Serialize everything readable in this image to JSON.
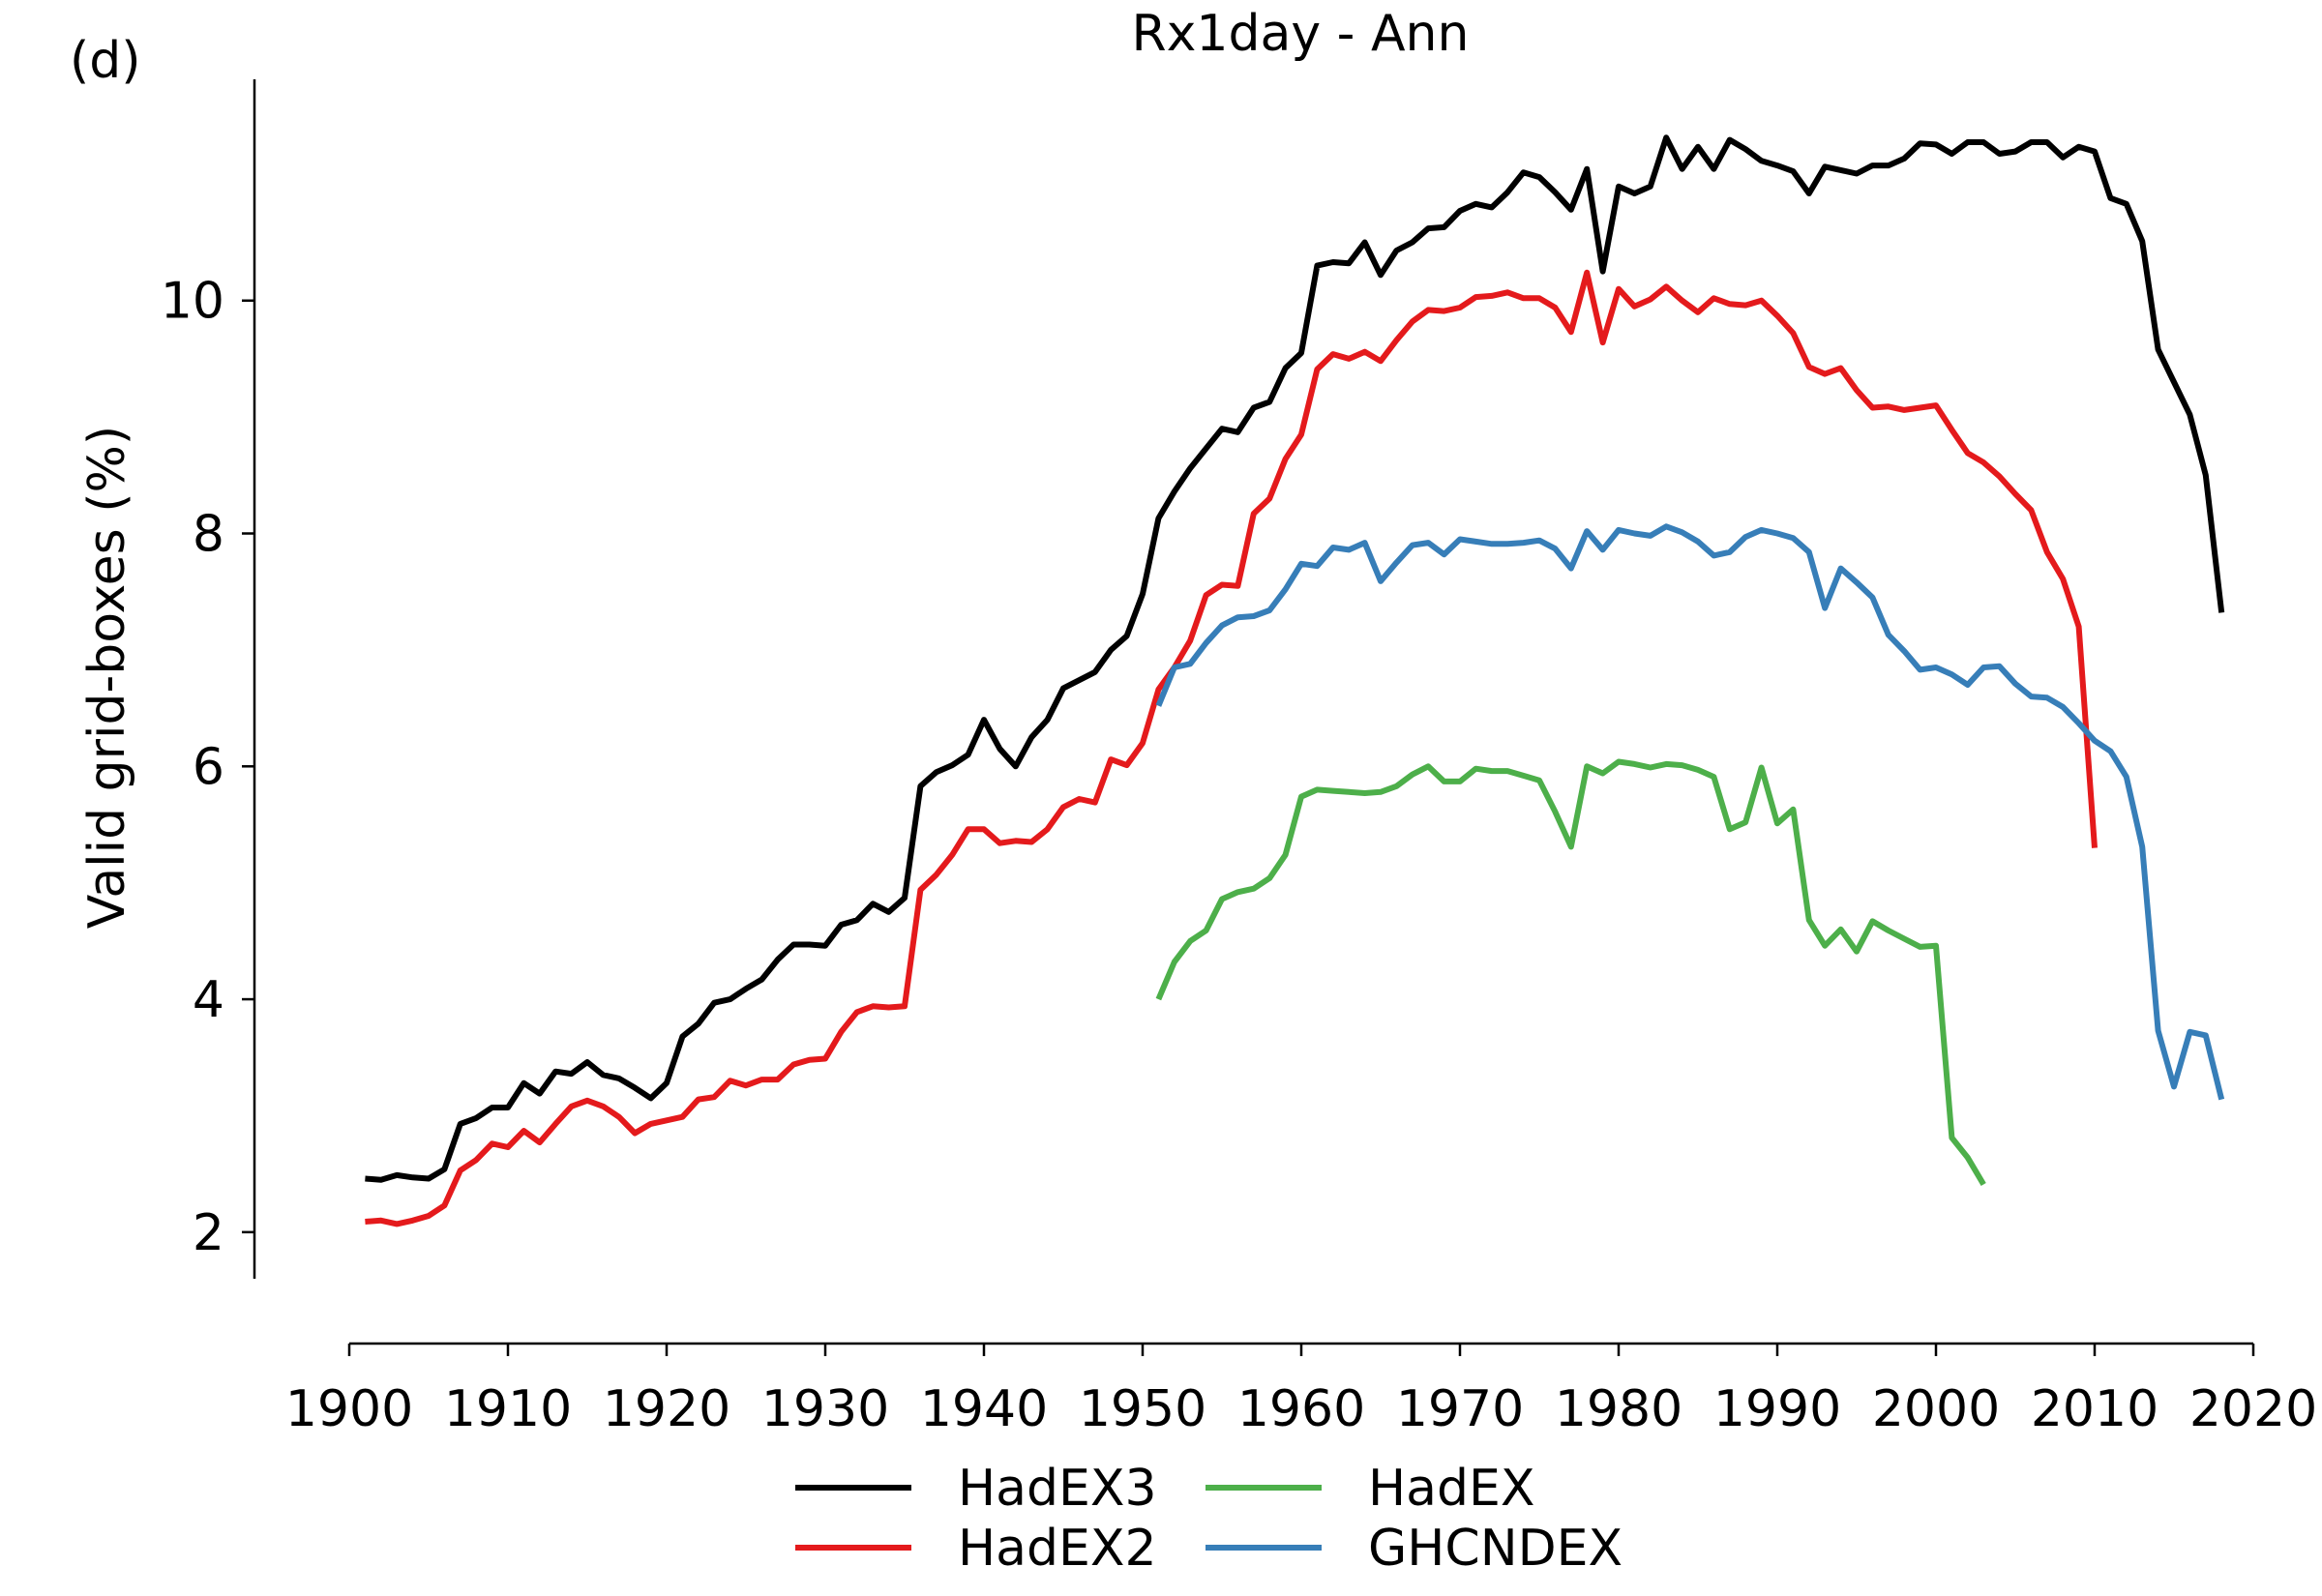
{
  "panel_label": "(d)",
  "chart_data": {
    "type": "line",
    "title": "Rx1day - Ann",
    "xlabel": "",
    "ylabel": "Valid grid-boxes (%)",
    "xlim": [
      1900,
      2020
    ],
    "ylim": [
      1.6,
      11.9
    ],
    "xticks": [
      1900,
      1910,
      1920,
      1930,
      1940,
      1950,
      1960,
      1970,
      1980,
      1990,
      2000,
      2010,
      2020
    ],
    "yticks": [
      2,
      4,
      6,
      8,
      10
    ],
    "grid": false,
    "legend_position": "bottom-center",
    "series": [
      {
        "name": "HadEX3",
        "color": "#000000",
        "x": [
          1901,
          1902,
          1903,
          1904,
          1905,
          1906,
          1907,
          1908,
          1909,
          1910,
          1911,
          1912,
          1913,
          1914,
          1915,
          1916,
          1917,
          1918,
          1919,
          1920,
          1921,
          1922,
          1923,
          1924,
          1925,
          1926,
          1927,
          1928,
          1929,
          1930,
          1931,
          1932,
          1933,
          1934,
          1935,
          1936,
          1937,
          1938,
          1939,
          1940,
          1941,
          1942,
          1943,
          1944,
          1945,
          1946,
          1947,
          1948,
          1949,
          1950,
          1951,
          1952,
          1953,
          1954,
          1955,
          1956,
          1957,
          1958,
          1959,
          1960,
          1961,
          1962,
          1963,
          1964,
          1965,
          1966,
          1967,
          1968,
          1969,
          1970,
          1971,
          1972,
          1973,
          1974,
          1975,
          1976,
          1977,
          1978,
          1979,
          1980,
          1981,
          1982,
          1983,
          1984,
          1985,
          1986,
          1987,
          1988,
          1989,
          1990,
          1991,
          1992,
          1993,
          1994,
          1995,
          1996,
          1997,
          1998,
          1999,
          2000,
          2001,
          2002,
          2003,
          2004,
          2005,
          2006,
          2007,
          2008,
          2009,
          2010,
          2011,
          2012,
          2013,
          2014,
          2015,
          2016,
          2017,
          2018
        ],
        "values": [
          2.46,
          2.45,
          2.49,
          2.47,
          2.46,
          2.54,
          2.93,
          2.98,
          3.07,
          3.07,
          3.28,
          3.19,
          3.38,
          3.36,
          3.46,
          3.35,
          3.32,
          3.24,
          3.15,
          3.28,
          3.68,
          3.79,
          3.97,
          4.0,
          4.09,
          4.17,
          4.34,
          4.47,
          4.47,
          4.46,
          4.64,
          4.68,
          4.82,
          4.75,
          4.87,
          5.83,
          5.95,
          6.01,
          6.1,
          6.4,
          6.15,
          6.0,
          6.25,
          6.4,
          6.67,
          6.74,
          6.81,
          7.0,
          7.12,
          7.48,
          8.13,
          8.36,
          8.56,
          8.73,
          8.9,
          8.87,
          9.08,
          9.13,
          9.42,
          9.55,
          10.3,
          10.33,
          10.32,
          10.5,
          10.22,
          10.43,
          10.5,
          10.62,
          10.63,
          10.77,
          10.83,
          10.8,
          10.93,
          11.1,
          11.06,
          10.93,
          10.78,
          11.13,
          10.25,
          10.98,
          10.92,
          10.98,
          11.4,
          11.13,
          11.32,
          11.13,
          11.38,
          11.3,
          11.2,
          11.16,
          11.11,
          10.92,
          11.15,
          11.12,
          11.09,
          11.16,
          11.16,
          11.22,
          11.35,
          11.34,
          11.26,
          11.36,
          11.36,
          11.26,
          11.28,
          11.36,
          11.36,
          11.23,
          11.32,
          11.28,
          10.88,
          10.83,
          10.51,
          9.58,
          9.3,
          9.02,
          8.5,
          7.32
        ]
      },
      {
        "name": "HadEX2",
        "color": "#e41a1c",
        "x": [
          1901,
          1902,
          1903,
          1904,
          1905,
          1906,
          1907,
          1908,
          1909,
          1910,
          1911,
          1912,
          1913,
          1914,
          1915,
          1916,
          1917,
          1918,
          1919,
          1920,
          1921,
          1922,
          1923,
          1924,
          1925,
          1926,
          1927,
          1928,
          1929,
          1930,
          1931,
          1932,
          1933,
          1934,
          1935,
          1936,
          1937,
          1938,
          1939,
          1940,
          1941,
          1942,
          1943,
          1944,
          1945,
          1946,
          1947,
          1948,
          1949,
          1950,
          1951,
          1952,
          1953,
          1954,
          1955,
          1956,
          1957,
          1958,
          1959,
          1960,
          1961,
          1962,
          1963,
          1964,
          1965,
          1966,
          1967,
          1968,
          1969,
          1970,
          1971,
          1972,
          1973,
          1974,
          1975,
          1976,
          1977,
          1978,
          1979,
          1980,
          1981,
          1982,
          1983,
          1984,
          1985,
          1986,
          1987,
          1988,
          1989,
          1990,
          1991,
          1992,
          1993,
          1994,
          1995,
          1996,
          1997,
          1998,
          1999,
          2000,
          2001,
          2002,
          2003,
          2004,
          2005,
          2006,
          2007,
          2008,
          2009,
          2010
        ],
        "values": [
          2.09,
          2.1,
          2.07,
          2.1,
          2.14,
          2.23,
          2.53,
          2.62,
          2.76,
          2.73,
          2.87,
          2.77,
          2.93,
          3.08,
          3.13,
          3.08,
          2.99,
          2.85,
          2.93,
          2.96,
          2.99,
          3.14,
          3.16,
          3.3,
          3.26,
          3.31,
          3.31,
          3.44,
          3.48,
          3.49,
          3.72,
          3.89,
          3.94,
          3.93,
          3.94,
          4.94,
          5.07,
          5.24,
          5.46,
          5.46,
          5.34,
          5.36,
          5.35,
          5.46,
          5.65,
          5.72,
          5.69,
          6.06,
          6.01,
          6.2,
          6.66,
          6.85,
          7.08,
          7.47,
          7.56,
          7.55,
          8.17,
          8.3,
          8.64,
          8.85,
          9.41,
          9.54,
          9.5,
          9.56,
          9.48,
          9.66,
          9.82,
          9.92,
          9.91,
          9.94,
          10.03,
          10.04,
          10.07,
          10.02,
          10.02,
          9.94,
          9.73,
          10.24,
          9.64,
          10.1,
          9.95,
          10.01,
          10.12,
          10.0,
          9.9,
          10.02,
          9.97,
          9.96,
          10.0,
          9.87,
          9.72,
          9.43,
          9.37,
          9.42,
          9.23,
          9.08,
          9.09,
          9.06,
          9.08,
          9.1,
          8.89,
          8.69,
          8.61,
          8.49,
          8.34,
          8.2,
          7.84,
          7.61,
          7.2,
          5.3
        ]
      },
      {
        "name": "HadEX",
        "color": "#4daf4a",
        "x": [
          1951,
          1952,
          1953,
          1954,
          1955,
          1956,
          1957,
          1958,
          1959,
          1960,
          1961,
          1962,
          1963,
          1964,
          1965,
          1966,
          1967,
          1968,
          1969,
          1970,
          1971,
          1972,
          1973,
          1974,
          1975,
          1976,
          1977,
          1978,
          1979,
          1980,
          1981,
          1982,
          1983,
          1984,
          1985,
          1986,
          1987,
          1988,
          1989,
          1990,
          1991,
          1992,
          1993,
          1994,
          1995,
          1996,
          1997,
          1998,
          1999,
          2000,
          2001,
          2002,
          2003
        ],
        "values": [
          4.0,
          4.32,
          4.5,
          4.59,
          4.86,
          4.92,
          4.95,
          5.04,
          5.24,
          5.74,
          5.8,
          5.79,
          5.78,
          5.77,
          5.78,
          5.83,
          5.93,
          6.0,
          5.87,
          5.87,
          5.98,
          5.96,
          5.96,
          5.92,
          5.88,
          5.61,
          5.31,
          6.0,
          5.94,
          6.04,
          6.02,
          5.99,
          6.02,
          6.01,
          5.97,
          5.91,
          5.46,
          5.52,
          5.99,
          5.51,
          5.63,
          4.68,
          4.46,
          4.6,
          4.41,
          4.67,
          4.59,
          4.52,
          4.45,
          4.46,
          2.81,
          2.64,
          2.41
        ]
      },
      {
        "name": "GHCNDEX",
        "color": "#377eb8",
        "x": [
          1951,
          1952,
          1953,
          1954,
          1955,
          1956,
          1957,
          1958,
          1959,
          1960,
          1961,
          1962,
          1963,
          1964,
          1965,
          1966,
          1967,
          1968,
          1969,
          1970,
          1971,
          1972,
          1973,
          1974,
          1975,
          1976,
          1977,
          1978,
          1979,
          1980,
          1981,
          1982,
          1983,
          1984,
          1985,
          1986,
          1987,
          1988,
          1989,
          1990,
          1991,
          1992,
          1993,
          1994,
          1995,
          1996,
          1997,
          1998,
          1999,
          2000,
          2001,
          2002,
          2003,
          2004,
          2005,
          2006,
          2007,
          2008,
          2009,
          2010,
          2011,
          2012,
          2013,
          2014,
          2015,
          2016,
          2017,
          2018
        ],
        "values": [
          6.52,
          6.85,
          6.88,
          7.06,
          7.21,
          7.28,
          7.29,
          7.34,
          7.52,
          7.74,
          7.72,
          7.88,
          7.86,
          7.92,
          7.59,
          7.75,
          7.9,
          7.92,
          7.82,
          7.95,
          7.93,
          7.91,
          7.91,
          7.92,
          7.94,
          7.87,
          7.7,
          8.02,
          7.86,
          8.03,
          8.0,
          7.98,
          8.06,
          8.01,
          7.93,
          7.81,
          7.84,
          7.97,
          8.03,
          8.0,
          7.96,
          7.84,
          7.36,
          7.7,
          7.58,
          7.45,
          7.13,
          6.99,
          6.83,
          6.85,
          6.79,
          6.7,
          6.85,
          6.86,
          6.71,
          6.6,
          6.59,
          6.51,
          6.37,
          6.22,
          6.13,
          5.91,
          5.31,
          3.73,
          3.25,
          3.72,
          3.69,
          3.14
        ]
      }
    ]
  }
}
